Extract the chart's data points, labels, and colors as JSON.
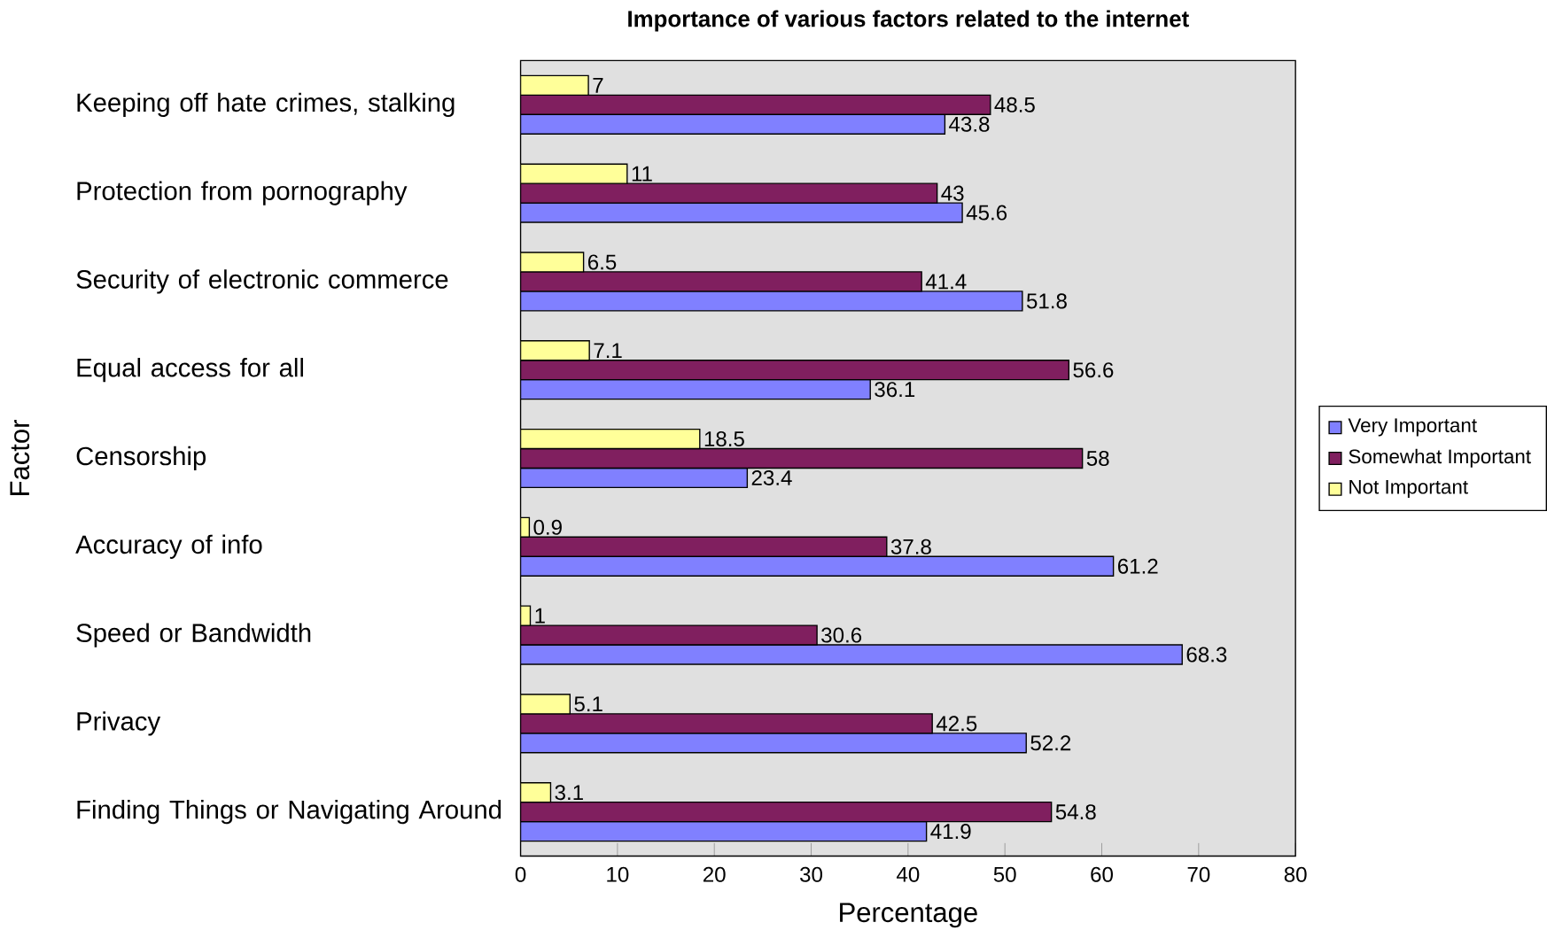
{
  "chart_data": {
    "type": "bar",
    "orientation": "horizontal",
    "title": "Importance of various factors related to the internet",
    "xlabel": "Percentage",
    "ylabel": "Factor",
    "categories": [
      "Keeping off hate crimes, stalking",
      "Protection from pornography",
      "Security of electronic commerce",
      "Equal access for all",
      "Censorship",
      "Accuracy of info",
      "Speed or Bandwidth",
      "Privacy",
      "Finding Things or Navigating Around"
    ],
    "series": [
      {
        "name": "Very Important",
        "color": "#8080ff",
        "values": [
          43.8,
          45.6,
          51.8,
          36.1,
          23.4,
          61.2,
          68.3,
          52.2,
          41.9
        ]
      },
      {
        "name": "Somewhat Important",
        "color": "#801f5f",
        "values": [
          48.5,
          43,
          41.4,
          56.6,
          58,
          37.8,
          30.6,
          42.5,
          54.8
        ]
      },
      {
        "name": "Not Important",
        "color": "#ffff99",
        "values": [
          7,
          11,
          6.5,
          7.1,
          18.5,
          0.9,
          1,
          5.1,
          3.1
        ]
      }
    ],
    "xlim": [
      0,
      80
    ],
    "xticks": [
      0,
      10,
      20,
      30,
      40,
      50,
      60,
      70,
      80
    ],
    "data_labels": true,
    "grid": false,
    "legend": "right"
  }
}
